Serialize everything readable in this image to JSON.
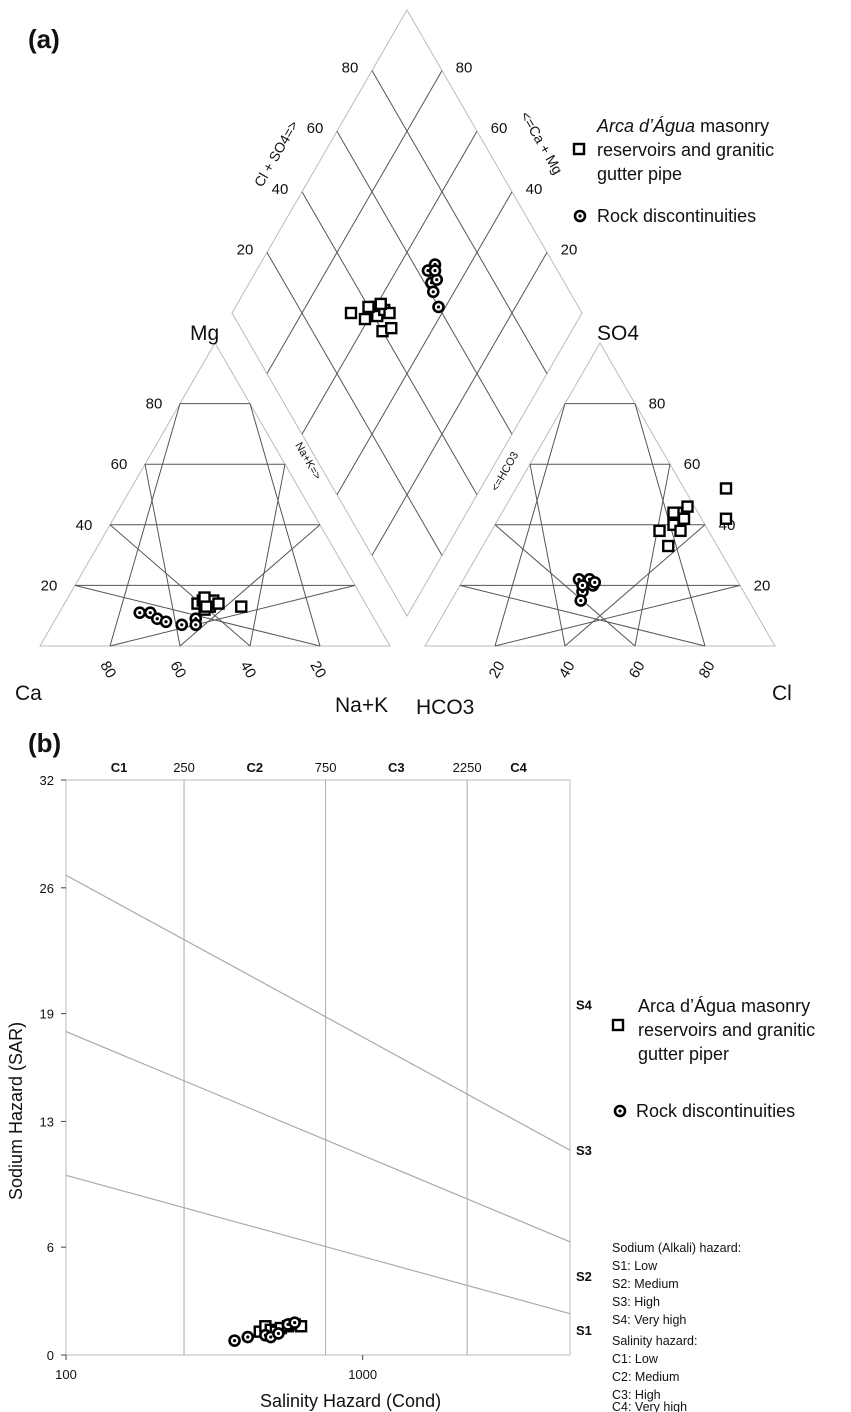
{
  "figure": {
    "panel_a_label": "(a)",
    "panel_b_label": "(b)"
  },
  "chart_data": [
    {
      "type": "scatter",
      "subtype": "piper",
      "cation_axis_labels": {
        "left": "Ca",
        "top": "Mg",
        "bottom": "Na+K"
      },
      "anion_axis_labels": {
        "right": "Cl",
        "top": "SO4",
        "bottom": "HCO3"
      },
      "diamond_axis_labels": {
        "left": "Cl + SO4=>",
        "right": "<=Ca + Mg",
        "lower_left": "Na+K=>",
        "lower_right": "<=HCO3"
      },
      "tick_values": [
        "20",
        "40",
        "60",
        "80"
      ],
      "legend": [
        {
          "name_italic": "Arca d’Água",
          "name_rest": " masonry reservoirs and granitic gutter pipe",
          "marker": "open-square"
        },
        {
          "name": "Rock discontinuities",
          "marker": "dotted-circle"
        }
      ],
      "series": [
        {
          "name": "Arca d’Água masonry reservoirs and granitic gutter pipe",
          "cations": [
            {
              "ca": 48,
              "mg": 14,
              "na_k": 38
            },
            {
              "ca": 46,
              "mg": 15,
              "na_k": 39
            },
            {
              "ca": 45,
              "mg": 13,
              "na_k": 42
            },
            {
              "ca": 44,
              "mg": 14,
              "na_k": 42
            },
            {
              "ca": 47,
              "mg": 12,
              "na_k": 41
            },
            {
              "ca": 43,
              "mg": 15,
              "na_k": 42
            },
            {
              "ca": 45,
              "mg": 16,
              "na_k": 39
            },
            {
              "ca": 42,
              "mg": 14,
              "na_k": 44
            },
            {
              "ca": 46,
              "mg": 13,
              "na_k": 41
            },
            {
              "ca": 36,
              "mg": 13,
              "na_k": 51
            }
          ],
          "anions": [
            {
              "cl": 52,
              "so4": 46,
              "hco3": 2
            },
            {
              "cl": 50,
              "so4": 44,
              "hco3": 6
            },
            {
              "cl": 51,
              "so4": 40,
              "hco3": 9
            },
            {
              "cl": 53,
              "so4": 42,
              "hco3": 5
            },
            {
              "cl": 54,
              "so4": 38,
              "hco3": 8
            },
            {
              "cl": 48,
              "so4": 38,
              "hco3": 14
            },
            {
              "cl": 53,
              "so4": 33,
              "hco3": 14
            },
            {
              "cl": 60,
              "so4": 52,
              "hco3": -12
            },
            {
              "cl": 65,
              "so4": 42,
              "hco3": -7
            },
            {
              "cl": 49,
              "so4": 44,
              "hco3": 7
            }
          ],
          "diamond": [
            {
              "cl_so4": 60,
              "ca_mg": 42
            },
            {
              "cl_so4": 58,
              "ca_mg": 41
            },
            {
              "cl_so4": 57,
              "ca_mg": 44
            },
            {
              "cl_so4": 62,
              "ca_mg": 40
            },
            {
              "cl_so4": 55,
              "ca_mg": 45
            },
            {
              "cl_so4": 54,
              "ca_mg": 40
            },
            {
              "cl_so4": 52,
              "ca_mg": 43
            },
            {
              "cl_so4": 61,
              "ca_mg": 37
            },
            {
              "cl_so4": 66,
              "ca_mg": 34
            },
            {
              "cl_so4": 59,
              "ca_mg": 44
            }
          ]
        },
        {
          "name": "Rock discontinuities",
          "cations": [
            {
              "ca": 66,
              "mg": 11,
              "na_k": 23
            },
            {
              "ca": 63,
              "mg": 11,
              "na_k": 26
            },
            {
              "ca": 62,
              "mg": 9,
              "na_k": 29
            },
            {
              "ca": 60,
              "mg": 8,
              "na_k": 32
            },
            {
              "ca": 56,
              "mg": 7,
              "na_k": 37
            },
            {
              "ca": 51,
              "mg": 9,
              "na_k": 40
            },
            {
              "ca": 52,
              "mg": 7,
              "na_k": 41
            }
          ],
          "anions": [
            {
              "cl": 33,
              "so4": 22,
              "hco3": 45
            },
            {
              "cl": 36,
              "so4": 22,
              "hco3": 42
            },
            {
              "cl": 38,
              "so4": 20,
              "hco3": 42
            },
            {
              "cl": 36,
              "so4": 18,
              "hco3": 46
            },
            {
              "cl": 37,
              "so4": 15,
              "hco3": 48
            },
            {
              "cl": 38,
              "so4": 21,
              "hco3": 41
            },
            {
              "cl": 35,
              "so4": 20,
              "hco3": 45
            }
          ],
          "diamond": [
            {
              "cl_so4": 50,
              "ca_mg": 66
            },
            {
              "cl_so4": 51,
              "ca_mg": 63
            },
            {
              "cl_so4": 48,
              "ca_mg": 62
            },
            {
              "cl_so4": 47,
              "ca_mg": 64
            },
            {
              "cl_so4": 46,
              "ca_mg": 61
            },
            {
              "cl_so4": 42,
              "ca_mg": 60
            },
            {
              "cl_so4": 49,
              "ca_mg": 65
            }
          ]
        }
      ]
    },
    {
      "type": "scatter",
      "subtype": "wilcox-ussl",
      "xlabel": "Salinity Hazard (Cond)",
      "ylabel": "Sodium Hazard (SAR)",
      "x_scale": "log",
      "xlim": [
        100,
        5000
      ],
      "ylim": [
        0,
        32
      ],
      "x_tick_labels": [
        "100",
        "1000"
      ],
      "y_tick_labels": [
        "0",
        "6",
        "13",
        "19",
        "26",
        "32"
      ],
      "class_boundaries": [
        "250",
        "750",
        "2250"
      ],
      "class_labels_top": [
        "C1",
        "C2",
        "C3",
        "C4"
      ],
      "class_labels_right": [
        "S4",
        "S3",
        "S2",
        "S1"
      ],
      "hazard_lines": [
        {
          "sar_at_100": 26.7,
          "sar_at_5000": 11.4
        },
        {
          "sar_at_100": 18.0,
          "sar_at_5000": 6.3
        },
        {
          "sar_at_100": 10.0,
          "sar_at_5000": 2.3
        }
      ],
      "legend": [
        {
          "name": "Arca d’Água masonry reservoirs and granitic gutter piper",
          "marker": "open-square"
        },
        {
          "name": "Rock discontinuities",
          "marker": "dotted-circle"
        }
      ],
      "notes": {
        "sodium_title": "Sodium (Alkali) hazard:",
        "sodium_items": [
          "S1: Low",
          "S2: Medium",
          "S3: High",
          "S4: Very high"
        ],
        "salinity_title": "Salinity hazard:",
        "salinity_items": [
          "C1: Low",
          "C2: Medium",
          "C3: High",
          "C4: Very high"
        ]
      },
      "series": [
        {
          "name": "Arca d’Água masonry reservoirs and granitic gutter piper",
          "points": [
            {
              "x": 450,
              "y": 1.3
            },
            {
              "x": 470,
              "y": 1.6
            },
            {
              "x": 490,
              "y": 1.4
            },
            {
              "x": 510,
              "y": 1.3
            },
            {
              "x": 530,
              "y": 1.5
            },
            {
              "x": 560,
              "y": 1.6
            },
            {
              "x": 590,
              "y": 1.7
            },
            {
              "x": 620,
              "y": 1.6
            }
          ]
        },
        {
          "name": "Rock discontinuities",
          "points": [
            {
              "x": 370,
              "y": 0.8
            },
            {
              "x": 410,
              "y": 1.0
            },
            {
              "x": 470,
              "y": 1.1
            },
            {
              "x": 490,
              "y": 1.0
            },
            {
              "x": 520,
              "y": 1.2
            },
            {
              "x": 560,
              "y": 1.7
            },
            {
              "x": 590,
              "y": 1.8
            }
          ]
        }
      ]
    }
  ]
}
